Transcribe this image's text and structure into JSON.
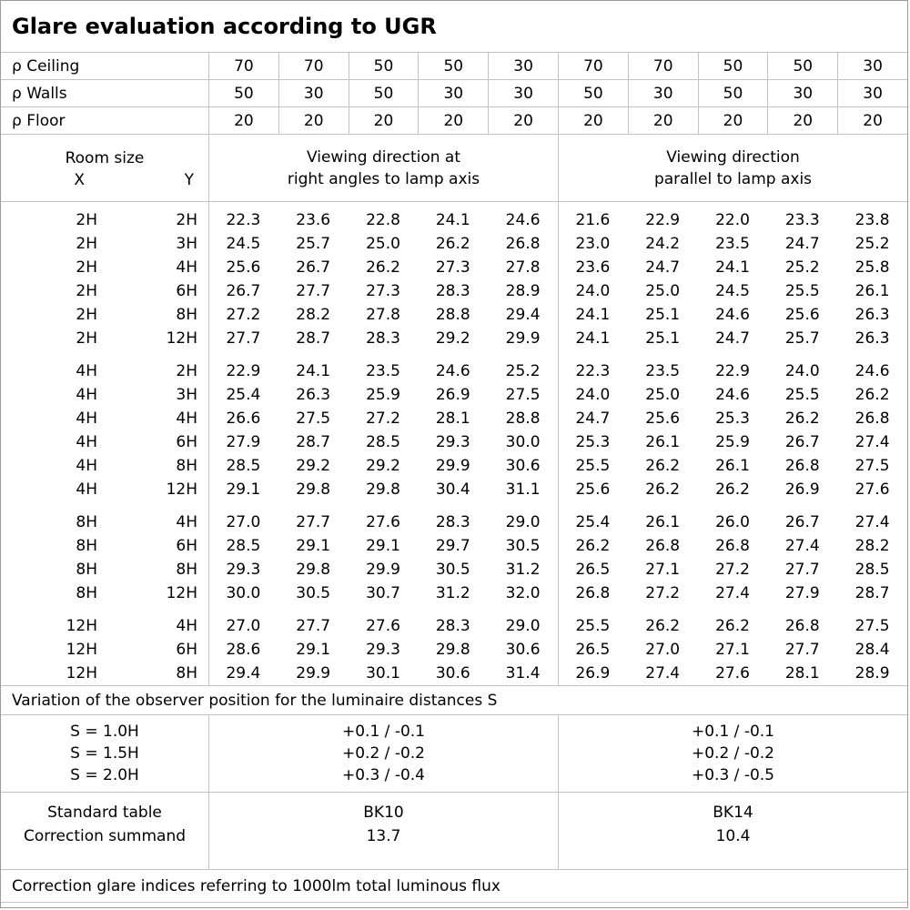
{
  "title": "Glare evaluation according to UGR",
  "reflectance": {
    "rows": [
      {
        "label": "ρ Ceiling",
        "values": [
          "70",
          "70",
          "50",
          "50",
          "30",
          "70",
          "70",
          "50",
          "50",
          "30"
        ]
      },
      {
        "label": "ρ Walls",
        "values": [
          "50",
          "30",
          "50",
          "30",
          "30",
          "50",
          "30",
          "50",
          "30",
          "30"
        ]
      },
      {
        "label": "ρ Floor",
        "values": [
          "20",
          "20",
          "20",
          "20",
          "20",
          "20",
          "20",
          "20",
          "20",
          "20"
        ]
      }
    ]
  },
  "header": {
    "room_size": "Room size",
    "x": "X",
    "y": "Y",
    "right_angle": "Viewing direction at\nright angles to lamp axis",
    "parallel": "Viewing direction\nparallel to lamp axis"
  },
  "ugr_table": {
    "groups": [
      {
        "x": "2H",
        "rows": [
          {
            "y": "2H",
            "right_angle": [
              "22.3",
              "23.6",
              "22.8",
              "24.1",
              "24.6"
            ],
            "parallel": [
              "21.6",
              "22.9",
              "22.0",
              "23.3",
              "23.8"
            ]
          },
          {
            "y": "3H",
            "right_angle": [
              "24.5",
              "25.7",
              "25.0",
              "26.2",
              "26.8"
            ],
            "parallel": [
              "23.0",
              "24.2",
              "23.5",
              "24.7",
              "25.2"
            ]
          },
          {
            "y": "4H",
            "right_angle": [
              "25.6",
              "26.7",
              "26.2",
              "27.3",
              "27.8"
            ],
            "parallel": [
              "23.6",
              "24.7",
              "24.1",
              "25.2",
              "25.8"
            ]
          },
          {
            "y": "6H",
            "right_angle": [
              "26.7",
              "27.7",
              "27.3",
              "28.3",
              "28.9"
            ],
            "parallel": [
              "24.0",
              "25.0",
              "24.5",
              "25.5",
              "26.1"
            ]
          },
          {
            "y": "8H",
            "right_angle": [
              "27.2",
              "28.2",
              "27.8",
              "28.8",
              "29.4"
            ],
            "parallel": [
              "24.1",
              "25.1",
              "24.6",
              "25.6",
              "26.3"
            ]
          },
          {
            "y": "12H",
            "right_angle": [
              "27.7",
              "28.7",
              "28.3",
              "29.2",
              "29.9"
            ],
            "parallel": [
              "24.1",
              "25.1",
              "24.7",
              "25.7",
              "26.3"
            ]
          }
        ]
      },
      {
        "x": "4H",
        "rows": [
          {
            "y": "2H",
            "right_angle": [
              "22.9",
              "24.1",
              "23.5",
              "24.6",
              "25.2"
            ],
            "parallel": [
              "22.3",
              "23.5",
              "22.9",
              "24.0",
              "24.6"
            ]
          },
          {
            "y": "3H",
            "right_angle": [
              "25.4",
              "26.3",
              "25.9",
              "26.9",
              "27.5"
            ],
            "parallel": [
              "24.0",
              "25.0",
              "24.6",
              "25.5",
              "26.2"
            ]
          },
          {
            "y": "4H",
            "right_angle": [
              "26.6",
              "27.5",
              "27.2",
              "28.1",
              "28.8"
            ],
            "parallel": [
              "24.7",
              "25.6",
              "25.3",
              "26.2",
              "26.8"
            ]
          },
          {
            "y": "6H",
            "right_angle": [
              "27.9",
              "28.7",
              "28.5",
              "29.3",
              "30.0"
            ],
            "parallel": [
              "25.3",
              "26.1",
              "25.9",
              "26.7",
              "27.4"
            ]
          },
          {
            "y": "8H",
            "right_angle": [
              "28.5",
              "29.2",
              "29.2",
              "29.9",
              "30.6"
            ],
            "parallel": [
              "25.5",
              "26.2",
              "26.1",
              "26.8",
              "27.5"
            ]
          },
          {
            "y": "12H",
            "right_angle": [
              "29.1",
              "29.8",
              "29.8",
              "30.4",
              "31.1"
            ],
            "parallel": [
              "25.6",
              "26.2",
              "26.2",
              "26.9",
              "27.6"
            ]
          }
        ]
      },
      {
        "x": "8H",
        "rows": [
          {
            "y": "4H",
            "right_angle": [
              "27.0",
              "27.7",
              "27.6",
              "28.3",
              "29.0"
            ],
            "parallel": [
              "25.4",
              "26.1",
              "26.0",
              "26.7",
              "27.4"
            ]
          },
          {
            "y": "6H",
            "right_angle": [
              "28.5",
              "29.1",
              "29.1",
              "29.7",
              "30.5"
            ],
            "parallel": [
              "26.2",
              "26.8",
              "26.8",
              "27.4",
              "28.2"
            ]
          },
          {
            "y": "8H",
            "right_angle": [
              "29.3",
              "29.8",
              "29.9",
              "30.5",
              "31.2"
            ],
            "parallel": [
              "26.5",
              "27.1",
              "27.2",
              "27.7",
              "28.5"
            ]
          },
          {
            "y": "12H",
            "right_angle": [
              "30.0",
              "30.5",
              "30.7",
              "31.2",
              "32.0"
            ],
            "parallel": [
              "26.8",
              "27.2",
              "27.4",
              "27.9",
              "28.7"
            ]
          }
        ]
      },
      {
        "x": "12H",
        "rows": [
          {
            "y": "4H",
            "right_angle": [
              "27.0",
              "27.7",
              "27.6",
              "28.3",
              "29.0"
            ],
            "parallel": [
              "25.5",
              "26.2",
              "26.2",
              "26.8",
              "27.5"
            ]
          },
          {
            "y": "6H",
            "right_angle": [
              "28.6",
              "29.1",
              "29.3",
              "29.8",
              "30.6"
            ],
            "parallel": [
              "26.5",
              "27.0",
              "27.1",
              "27.7",
              "28.4"
            ]
          },
          {
            "y": "8H",
            "right_angle": [
              "29.4",
              "29.9",
              "30.1",
              "30.6",
              "31.4"
            ],
            "parallel": [
              "26.9",
              "27.4",
              "27.6",
              "28.1",
              "28.9"
            ]
          }
        ]
      }
    ]
  },
  "variation_note": "Variation of the observer position for the luminaire distances S",
  "variation": {
    "s_labels": [
      "S = 1.0H",
      "S = 1.5H",
      "S = 2.0H"
    ],
    "right_angle": [
      "+0.1 / -0.1",
      "+0.2 / -0.2",
      "+0.3 / -0.4"
    ],
    "parallel": [
      "+0.1 / -0.1",
      "+0.2 / -0.2",
      "+0.3 / -0.5"
    ]
  },
  "summary": {
    "labels": [
      "Standard table",
      "Correction summand"
    ],
    "right_angle": [
      "BK10",
      "13.7"
    ],
    "parallel": [
      "BK14",
      "10.4"
    ]
  },
  "footnote": "Correction glare indices referring to 1000lm total luminous flux",
  "colors": {
    "background": "#ffffff",
    "text": "#000000",
    "grid": "#c3c3c3",
    "outer_border": "#9b9b9b"
  }
}
